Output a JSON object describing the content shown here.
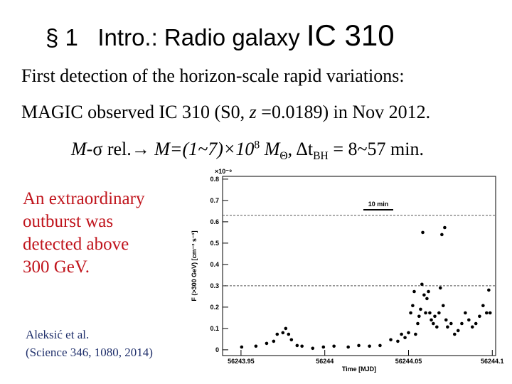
{
  "slide": {
    "title_prefix": "§ 1",
    "title": "Intro.: Radio galaxy",
    "title_object": "IC 310",
    "line1": "First detection of the horizon-scale rapid variations:",
    "line2": [
      "MAGIC observed IC 310 (S0, ",
      "z",
      " =0.0189) in Nov 2012."
    ],
    "line3": [
      "M-",
      "σ",
      " rel.→ ",
      "M=(1~7)×10",
      "8",
      " M",
      "Θ",
      ", Δt",
      "BH",
      " = 8~57 min."
    ],
    "highlight": [
      "An extraordinary",
      "outburst was",
      "detected above",
      "300 GeV."
    ],
    "citation": [
      "Aleksić et al.",
      "(Science 346, 1080, 2014)"
    ]
  },
  "chart_data": {
    "type": "scatter",
    "x_label": "Time [MJD]",
    "y_label": "F (>300 GeV) [cm⁻² s⁻¹]",
    "y_scale_label": "×10⁻⁹",
    "annotation": "10 min",
    "color": "#000000",
    "reference_lines": [
      0.63,
      0.3
    ],
    "xlim": [
      56243.939,
      56244.102
    ],
    "ylim": [
      -0.027,
      0.813
    ],
    "xticks": [
      56243.95,
      56244,
      56244.05,
      56244.1
    ],
    "yticks": [
      0,
      0.1,
      0.2,
      0.3,
      0.4,
      0.5,
      0.6,
      0.7,
      0.8
    ],
    "x": [
      56243.9504,
      56243.9589,
      56243.9653,
      56243.9695,
      56243.9716,
      56243.975,
      56243.9767,
      56243.9784,
      56243.9801,
      56243.9835,
      56243.9864,
      56243.9928,
      56243.9992,
      56244.0055,
      56244.014,
      56244.0203,
      56244.0267,
      56244.033,
      56244.0394,
      56244.0436,
      56244.0458,
      56244.0479,
      56244.05,
      56244.0513,
      56244.0525,
      56244.0534,
      56244.0542,
      56244.0555,
      56244.0563,
      56244.0572,
      56244.058,
      56244.0585,
      56244.0593,
      56244.0602,
      56244.061,
      56244.0619,
      56244.0627,
      56244.0636,
      56244.0648,
      56244.0657,
      56244.0669,
      56244.0682,
      56244.069,
      56244.0699,
      56244.0707,
      56244.0716,
      56244.0724,
      56244.0733,
      56244.0754,
      56244.0775,
      56244.0796,
      56244.0818,
      56244.0839,
      56244.086,
      56244.0881,
      56244.0902,
      56244.0924,
      56244.0945,
      56244.0966,
      56244.0979,
      56244.0987
    ],
    "values": [
      0.013,
      0.017,
      0.03,
      0.04,
      0.073,
      0.08,
      0.1,
      0.073,
      0.047,
      0.02,
      0.017,
      0.007,
      0.013,
      0.017,
      0.013,
      0.02,
      0.017,
      0.02,
      0.047,
      0.04,
      0.073,
      0.057,
      0.08,
      0.173,
      0.207,
      0.273,
      0.073,
      0.123,
      0.157,
      0.19,
      0.307,
      0.55,
      0.257,
      0.173,
      0.24,
      0.273,
      0.173,
      0.14,
      0.123,
      0.157,
      0.107,
      0.173,
      0.29,
      0.54,
      0.207,
      0.573,
      0.14,
      0.107,
      0.123,
      0.073,
      0.09,
      0.123,
      0.173,
      0.14,
      0.107,
      0.123,
      0.157,
      0.207,
      0.173,
      0.28,
      0.173
    ]
  }
}
